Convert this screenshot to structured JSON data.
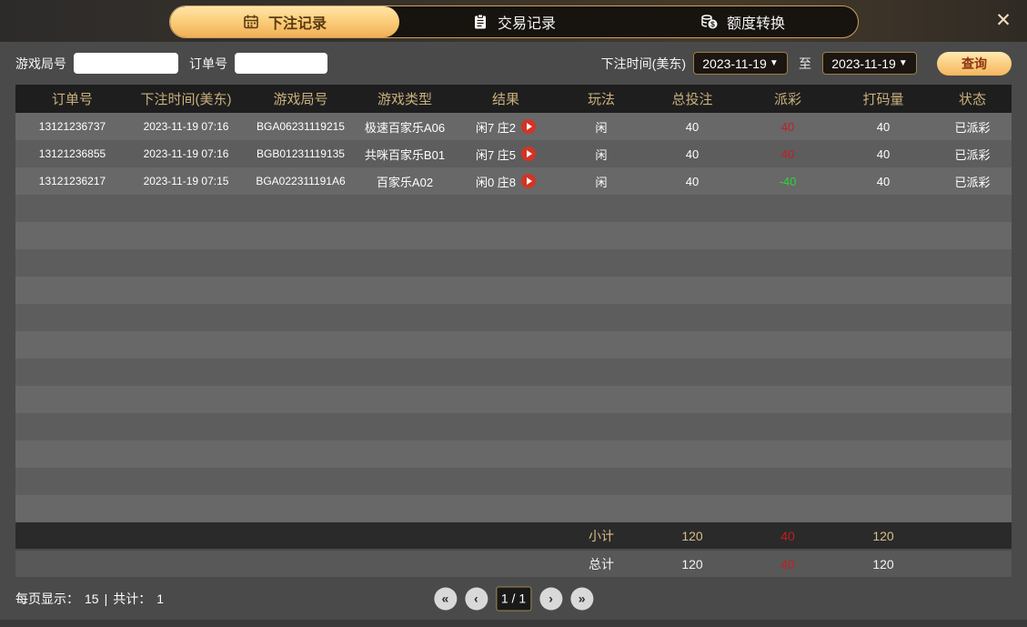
{
  "colors": {
    "accent_gold": "#f1ae55",
    "header_text_gold": "#c9b07c",
    "payout_red": "#c11f1f",
    "payout_green": "#30d435",
    "play_button_red": "#d43324"
  },
  "tabs": [
    {
      "label": "下注记录",
      "icon": "calendar-icon",
      "active": true
    },
    {
      "label": "交易记录",
      "icon": "clipboard-icon",
      "active": false
    },
    {
      "label": "额度转换",
      "icon": "coins-icon",
      "active": false
    }
  ],
  "close_label": "✕",
  "filters": {
    "game_round_label": "游戏局号",
    "game_round_value": "",
    "order_no_label": "订单号",
    "order_no_value": "",
    "bet_time_label": "下注时间(美东)",
    "date_from": "2023-11-19",
    "date_to": "2023-11-19",
    "dropdown_arrow": "▼",
    "to_label": "至",
    "search_button_label": "查询"
  },
  "table": {
    "headers": [
      "订单号",
      "下注时间(美东)",
      "游戏局号",
      "游戏类型",
      "结果",
      "玩法",
      "总投注",
      "派彩",
      "打码量",
      "状态"
    ],
    "rows": [
      {
        "order_no": "13121236737",
        "bet_time": "2023-11-19 07:16",
        "round_no": "BGA06231119215",
        "game_type": "极速百家乐A06",
        "result": "闲7 庄2",
        "play": "闲",
        "total_bet": "40",
        "payout": "40",
        "payout_class": "red",
        "turnover": "40",
        "status": "已派彩"
      },
      {
        "order_no": "13121236855",
        "bet_time": "2023-11-19 07:16",
        "round_no": "BGB01231119135",
        "game_type": "共咪百家乐B01",
        "result": "闲7 庄5",
        "play": "闲",
        "total_bet": "40",
        "payout": "40",
        "payout_class": "red",
        "turnover": "40",
        "status": "已派彩"
      },
      {
        "order_no": "13121236217",
        "bet_time": "2023-11-19 07:15",
        "round_no": "BGA022311191A6",
        "game_type": "百家乐A02",
        "result": "闲0 庄8",
        "play": "闲",
        "total_bet": "40",
        "payout": "-40",
        "payout_class": "green",
        "turnover": "40",
        "status": "已派彩"
      }
    ],
    "empty_row_count": 12,
    "subtotal": {
      "label": "小计",
      "total_bet": "120",
      "payout": "40",
      "turnover": "120"
    },
    "total": {
      "label": "总计",
      "total_bet": "120",
      "payout": "40",
      "turnover": "120"
    }
  },
  "pagination": {
    "per_page_label": "每页显示：",
    "per_page": "15",
    "separator": "|",
    "total_label": "共计：",
    "total": "1",
    "first": "«",
    "prev": "‹",
    "page_indicator": "1 / 1",
    "next": "›",
    "last": "»"
  }
}
